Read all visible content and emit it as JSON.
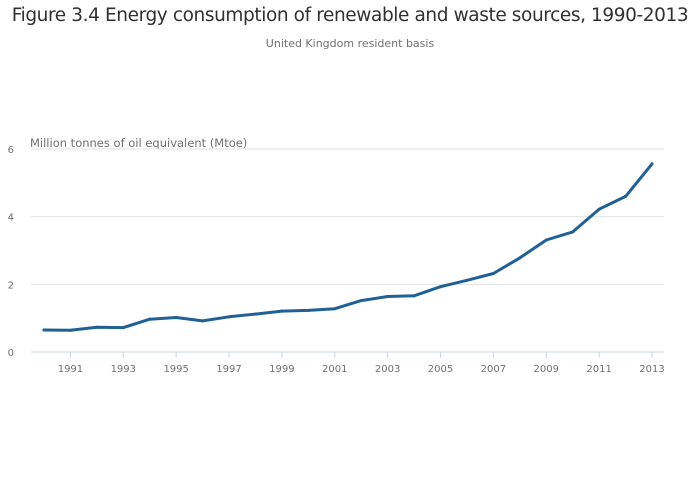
{
  "chart_data": {
    "type": "line",
    "title": "Figure 3.4 Energy consumption of renewable and waste sources, 1990-2013",
    "subtitle": "United Kingdom resident basis",
    "xlabel": "",
    "ylabel": "Million tonnes of oil equivalent (Mtoe)",
    "x": [
      1990,
      1991,
      1992,
      1993,
      1994,
      1995,
      1996,
      1997,
      1998,
      1999,
      2000,
      2001,
      2002,
      2003,
      2004,
      2005,
      2006,
      2007,
      2008,
      2009,
      2010,
      2011,
      2012,
      2013
    ],
    "series": [
      {
        "name": "Renewable and waste sources",
        "color": "#206095",
        "values": [
          0.65,
          0.64,
          0.73,
          0.72,
          0.97,
          1.02,
          0.92,
          1.04,
          1.12,
          1.21,
          1.23,
          1.28,
          1.52,
          1.64,
          1.66,
          1.93,
          2.12,
          2.32,
          2.78,
          3.31,
          3.55,
          4.22,
          4.6,
          5.56
        ]
      }
    ],
    "xticks": [
      "1991",
      "1993",
      "1995",
      "1997",
      "1999",
      "2001",
      "2003",
      "2005",
      "2007",
      "2009",
      "2011",
      "2013"
    ],
    "yticks": [
      "0",
      "2",
      "4",
      "6"
    ],
    "ylim": [
      0,
      6
    ],
    "xlim": [
      1989.5,
      2013.5
    ],
    "grid": true,
    "legend": "none"
  }
}
